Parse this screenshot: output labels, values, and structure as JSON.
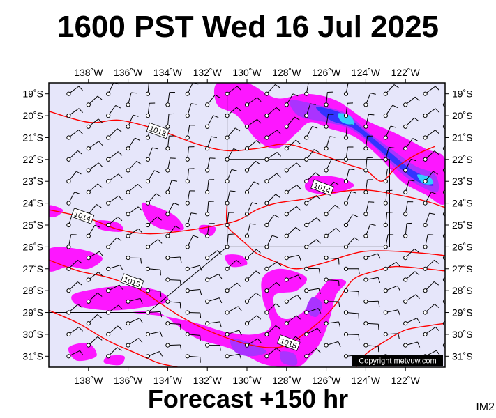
{
  "title": "1600 PST Wed 16 Jul 2025",
  "footer": "Forecast +150 hr",
  "image_code": "IM2",
  "copyright": "Copyright metvuw.com",
  "colors": {
    "background": "#e6e6fa",
    "precip_light": "#ff00ff",
    "precip_medium": "#aa33ff",
    "precip_heavy": "#3333ff",
    "precip_extreme": "#33ccff",
    "isobar": "#ff0000",
    "grid": "#000000"
  },
  "map": {
    "lon_range": [
      -140,
      -120
    ],
    "lat_range": [
      -31.5,
      -18.5
    ],
    "lon_ticks": [
      {
        "value": -138,
        "label": "138˚W"
      },
      {
        "value": -136,
        "label": "136˚W"
      },
      {
        "value": -134,
        "label": "134˚W"
      },
      {
        "value": -132,
        "label": "132˚W"
      },
      {
        "value": -130,
        "label": "130˚W"
      },
      {
        "value": -128,
        "label": "128˚W"
      },
      {
        "value": -126,
        "label": "126˚W"
      },
      {
        "value": -124,
        "label": "124˚W"
      },
      {
        "value": -122,
        "label": "122˚W"
      }
    ],
    "lat_ticks": [
      {
        "value": -19,
        "label": "19˚S"
      },
      {
        "value": -20,
        "label": "20˚S"
      },
      {
        "value": -21,
        "label": "21˚S"
      },
      {
        "value": -22,
        "label": "22˚S"
      },
      {
        "value": -23,
        "label": "23˚S"
      },
      {
        "value": -24,
        "label": "24˚S"
      },
      {
        "value": -25,
        "label": "25˚S"
      },
      {
        "value": -26,
        "label": "26˚S"
      },
      {
        "value": -27,
        "label": "27˚S"
      },
      {
        "value": -28,
        "label": "28˚S"
      },
      {
        "value": -29,
        "label": "29˚S"
      },
      {
        "value": -30,
        "label": "30˚S"
      },
      {
        "value": -31,
        "label": "31˚S"
      }
    ],
    "isobars": [
      {
        "label": "1013",
        "label_at": [
          -134.5,
          -20.7
        ],
        "points": [
          [
            -140,
            -19.8
          ],
          [
            -138,
            -20.3
          ],
          [
            -136.5,
            -20.2
          ],
          [
            -135,
            -20.5
          ],
          [
            -134,
            -20.8
          ],
          [
            -132.5,
            -21.3
          ],
          [
            -131,
            -21.6
          ],
          [
            -129.5,
            -21.5
          ],
          [
            -128,
            -21.3
          ],
          [
            -126.5,
            -21.7
          ],
          [
            -125,
            -22.2
          ],
          [
            -124,
            -22.5
          ],
          [
            -123.2,
            -23.0
          ],
          [
            -122.5,
            -22.4
          ],
          [
            -121.5,
            -21.8
          ],
          [
            -120.5,
            -21.4
          ]
        ]
      },
      {
        "label": "1014",
        "label_at": [
          -138.3,
          -24.6
        ],
        "points": [
          [
            -140,
            -24.3
          ],
          [
            -138,
            -24.7
          ],
          [
            -136.5,
            -25.2
          ],
          [
            -135,
            -25.4
          ],
          [
            -133.5,
            -25.3
          ],
          [
            -132,
            -25.1
          ],
          [
            -130.5,
            -24.8
          ],
          [
            -129.5,
            -24.3
          ],
          [
            -128.5,
            -24.0
          ],
          [
            -127,
            -23.8
          ],
          [
            -125.5,
            -23.5
          ],
          [
            -124,
            -23.4
          ],
          [
            -122.5,
            -23.6
          ],
          [
            -121,
            -23.9
          ],
          [
            -120,
            -24.2
          ]
        ]
      },
      {
        "label": "1014",
        "label_at": [
          -126.2,
          -23.3
        ],
        "points": [
          [
            -131,
            -24.0
          ],
          [
            -131,
            -25.0
          ],
          [
            -130.5,
            -25.5
          ],
          [
            -130,
            -25.9
          ],
          [
            -129.5,
            -26.3
          ],
          [
            -128.5,
            -26.7
          ],
          [
            -127.5,
            -27.0
          ],
          [
            -126,
            -26.7
          ],
          [
            -125,
            -26.4
          ],
          [
            -124,
            -26.2
          ],
          [
            -122.5,
            -26.2
          ],
          [
            -121,
            -26.3
          ],
          [
            -120,
            -26.4
          ]
        ]
      },
      {
        "label": "1015",
        "label_at": [
          -135.8,
          -27.6
        ],
        "points": [
          [
            -140,
            -26.6
          ],
          [
            -138.5,
            -27.1
          ],
          [
            -137,
            -27.4
          ],
          [
            -135.5,
            -27.9
          ],
          [
            -134.5,
            -28.5
          ],
          [
            -133.5,
            -29.1
          ],
          [
            -132.5,
            -29.6
          ],
          [
            -131.5,
            -30.0
          ],
          [
            -130.2,
            -30.4
          ],
          [
            -129,
            -30.6
          ],
          [
            -128,
            -30.5
          ],
          [
            -127,
            -29.9
          ],
          [
            -126.2,
            -29.3
          ],
          [
            -125.5,
            -28.6
          ],
          [
            -125,
            -27.9
          ],
          [
            -124.5,
            -27.4
          ],
          [
            -123.5,
            -27.1
          ],
          [
            -122.5,
            -26.9
          ],
          [
            -121,
            -27.0
          ],
          [
            -120,
            -27.1
          ]
        ]
      },
      {
        "label": "1015",
        "label_at": [
          -127.9,
          -30.4
        ],
        "points": [
          [
            -140,
            -28.9
          ],
          [
            -138.5,
            -29.5
          ],
          [
            -137,
            -30.3
          ],
          [
            -135.5,
            -30.9
          ],
          [
            -134.5,
            -31.3
          ],
          [
            -133.5,
            -31.5
          ]
        ]
      },
      {
        "label": "",
        "label_at": null,
        "points": [
          [
            -124.5,
            -31.5
          ],
          [
            -124,
            -30.9
          ],
          [
            -123,
            -30.3
          ],
          [
            -122,
            -29.8
          ],
          [
            -120.8,
            -29.6
          ],
          [
            -120,
            -29.5
          ]
        ]
      }
    ],
    "precip_areas": [
      {
        "level": "light",
        "points": [
          [
            -131.5,
            -18.5
          ],
          [
            -130,
            -18.5
          ],
          [
            -128.5,
            -19.2
          ],
          [
            -127,
            -19.0
          ],
          [
            -125.5,
            -19.3
          ],
          [
            -124,
            -20.2
          ],
          [
            -122.5,
            -20.8
          ],
          [
            -121,
            -21.5
          ],
          [
            -120,
            -22.0
          ],
          [
            -120,
            -24.0
          ],
          [
            -121,
            -23.6
          ],
          [
            -122.2,
            -23.0
          ],
          [
            -123.2,
            -22.0
          ],
          [
            -124.5,
            -21.0
          ],
          [
            -125.8,
            -20.6
          ],
          [
            -126.8,
            -20.3
          ],
          [
            -127.5,
            -20.8
          ],
          [
            -128.5,
            -21.5
          ],
          [
            -129.5,
            -21.1
          ],
          [
            -130.5,
            -20.0
          ],
          [
            -131.5,
            -19.5
          ]
        ]
      },
      {
        "level": "medium",
        "points": [
          [
            -127.8,
            -19.3
          ],
          [
            -126.5,
            -19.5
          ],
          [
            -125,
            -19.9
          ],
          [
            -123.8,
            -20.8
          ],
          [
            -122.6,
            -21.6
          ],
          [
            -121.5,
            -22.3
          ],
          [
            -120.5,
            -22.7
          ],
          [
            -120.4,
            -23.5
          ],
          [
            -121.5,
            -23.1
          ],
          [
            -122.5,
            -22.4
          ],
          [
            -123.6,
            -21.4
          ],
          [
            -124.8,
            -20.6
          ],
          [
            -126,
            -20.3
          ],
          [
            -127.4,
            -20.0
          ]
        ]
      },
      {
        "level": "heavy",
        "points": [
          [
            -126.5,
            -19.6
          ],
          [
            -125.2,
            -19.9
          ],
          [
            -124.2,
            -20.6
          ],
          [
            -123,
            -21.5
          ],
          [
            -121.8,
            -22.4
          ],
          [
            -121,
            -22.8
          ],
          [
            -120.6,
            -23.2
          ],
          [
            -121.4,
            -23.0
          ],
          [
            -122.4,
            -22.3
          ],
          [
            -123.4,
            -21.5
          ],
          [
            -124.6,
            -20.6
          ],
          [
            -125.8,
            -20.2
          ]
        ]
      },
      {
        "level": "extreme",
        "points": [
          [
            -125.4,
            -19.9
          ],
          [
            -124.8,
            -20.0
          ],
          [
            -124.6,
            -20.4
          ],
          [
            -125.2,
            -20.3
          ]
        ]
      },
      {
        "level": "extreme",
        "points": [
          [
            -121.4,
            -22.7
          ],
          [
            -120.8,
            -22.8
          ],
          [
            -120.6,
            -23.1
          ],
          [
            -121.1,
            -23.1
          ]
        ]
      },
      {
        "level": "light",
        "points": [
          [
            -140,
            -24.1
          ],
          [
            -139.3,
            -24.3
          ],
          [
            -139.6,
            -24.6
          ],
          [
            -140,
            -24.6
          ]
        ]
      },
      {
        "level": "light",
        "points": [
          [
            -135.3,
            -24.0
          ],
          [
            -134.5,
            -24.2
          ],
          [
            -133.6,
            -24.6
          ],
          [
            -133.2,
            -25.2
          ],
          [
            -134.2,
            -25.2
          ],
          [
            -135,
            -24.8
          ]
        ]
      },
      {
        "level": "light",
        "points": [
          [
            -137.6,
            -24.8
          ],
          [
            -136.5,
            -24.9
          ],
          [
            -136.3,
            -25.3
          ],
          [
            -137.4,
            -25.2
          ]
        ]
      },
      {
        "level": "light",
        "points": [
          [
            -126.8,
            -22.8
          ],
          [
            -125.5,
            -22.8
          ],
          [
            -124.6,
            -23.2
          ],
          [
            -125.8,
            -23.6
          ],
          [
            -127,
            -23.4
          ]
        ]
      },
      {
        "level": "light",
        "points": [
          [
            -140,
            -26.1
          ],
          [
            -138.5,
            -26.1
          ],
          [
            -137.3,
            -26.5
          ],
          [
            -138,
            -27.0
          ],
          [
            -139,
            -26.9
          ],
          [
            -140,
            -27.1
          ]
        ]
      },
      {
        "level": "light",
        "points": [
          [
            -138.8,
            -28.2
          ],
          [
            -137.5,
            -27.9
          ],
          [
            -136,
            -27.8
          ],
          [
            -134.5,
            -28.0
          ],
          [
            -134,
            -28.5
          ],
          [
            -135.5,
            -28.8
          ],
          [
            -137,
            -28.9
          ],
          [
            -138.5,
            -28.7
          ]
        ]
      },
      {
        "level": "light",
        "points": [
          [
            -135.8,
            -29.0
          ],
          [
            -134.5,
            -29.0
          ],
          [
            -133.5,
            -29.6
          ],
          [
            -132.5,
            -30.2
          ],
          [
            -131,
            -30.6
          ],
          [
            -130,
            -31.0
          ],
          [
            -129,
            -31.4
          ],
          [
            -127.5,
            -31.5
          ],
          [
            -126.8,
            -31.0
          ],
          [
            -126.2,
            -30.2
          ],
          [
            -125.8,
            -29.2
          ],
          [
            -125.5,
            -28.2
          ],
          [
            -125,
            -27.6
          ],
          [
            -125.8,
            -27.5
          ],
          [
            -126.5,
            -28.2
          ],
          [
            -127.2,
            -29.0
          ],
          [
            -128,
            -29.3
          ],
          [
            -128.5,
            -29.0
          ],
          [
            -128.6,
            -28.2
          ],
          [
            -127.5,
            -28.0
          ],
          [
            -127,
            -27.4
          ],
          [
            -128.3,
            -27.0
          ],
          [
            -129.2,
            -27.4
          ],
          [
            -129.2,
            -28.4
          ],
          [
            -128.8,
            -29.6
          ],
          [
            -129.6,
            -30.0
          ],
          [
            -131,
            -29.9
          ],
          [
            -132.5,
            -29.5
          ],
          [
            -134,
            -29.2
          ]
        ]
      },
      {
        "level": "medium",
        "points": [
          [
            -130.8,
            -30.2
          ],
          [
            -129.8,
            -30.4
          ],
          [
            -129,
            -30.8
          ],
          [
            -129.8,
            -31.0
          ],
          [
            -130.6,
            -30.8
          ]
        ]
      },
      {
        "level": "medium",
        "points": [
          [
            -128.3,
            -30.8
          ],
          [
            -127.6,
            -30.9
          ],
          [
            -127.5,
            -31.4
          ],
          [
            -128.2,
            -31.3
          ]
        ]
      },
      {
        "level": "medium",
        "points": [
          [
            -126.7,
            -28.3
          ],
          [
            -126.2,
            -28.6
          ],
          [
            -126.5,
            -29.2
          ],
          [
            -127,
            -28.9
          ]
        ]
      },
      {
        "level": "light",
        "points": [
          [
            -139,
            -30.6
          ],
          [
            -138,
            -30.4
          ],
          [
            -137.6,
            -31.0
          ],
          [
            -138.6,
            -31.2
          ]
        ]
      },
      {
        "level": "light",
        "points": [
          [
            -137,
            -31.0
          ],
          [
            -136.2,
            -31.0
          ],
          [
            -136.4,
            -31.4
          ],
          [
            -137.2,
            -31.3
          ]
        ]
      },
      {
        "level": "light",
        "points": [
          [
            -131.1,
            -26.4
          ],
          [
            -130.3,
            -26.4
          ],
          [
            -130.0,
            -26.8
          ],
          [
            -130.8,
            -26.9
          ]
        ]
      },
      {
        "level": "light",
        "points": [
          [
            -132.3,
            -25.0
          ],
          [
            -131.6,
            -25.1
          ],
          [
            -131.8,
            -25.5
          ],
          [
            -132.4,
            -25.3
          ]
        ]
      }
    ],
    "high_box": {
      "outline": [
        [
          -131,
          -19.0
        ],
        [
          -131,
          -26.0
        ],
        [
          -122.8,
          -26.0
        ],
        [
          -122.8,
          -22.0
        ],
        [
          -131,
          -22.0
        ]
      ],
      "diagonal": [
        [
          -131,
          -26.0
        ],
        [
          -135,
          -29.0
        ],
        [
          -140,
          -29.0
        ]
      ]
    },
    "wind_barbs": {
      "lon_start": -139,
      "lon_step": 1,
      "lon_count": 20,
      "lat_start": -19,
      "lat_step": -0.5,
      "lat_count": 26
    }
  }
}
